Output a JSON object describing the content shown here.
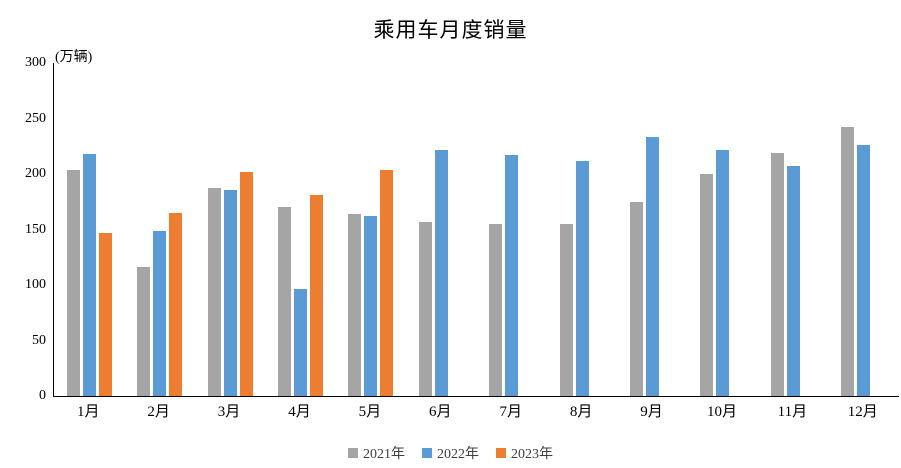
{
  "chart_data": {
    "type": "bar",
    "title": "乘用车月度销量",
    "unit_label": "(万辆)",
    "categories": [
      "1月",
      "2月",
      "3月",
      "4月",
      "5月",
      "6月",
      "7月",
      "8月",
      "9月",
      "10月",
      "11月",
      "12月"
    ],
    "series": [
      {
        "name": "2021年",
        "color": "#A5A5A5",
        "values": [
          204,
          116,
          187,
          170,
          164,
          157,
          155,
          155,
          175,
          200,
          219,
          242
        ]
      },
      {
        "name": "2022年",
        "color": "#5B9BD5",
        "values": [
          218,
          149,
          186,
          96,
          162,
          222,
          217,
          212,
          233,
          222,
          207,
          226
        ]
      },
      {
        "name": "2023年",
        "color": "#ED7D31",
        "values": [
          147,
          165,
          202,
          181,
          204,
          null,
          null,
          null,
          null,
          null,
          null,
          null
        ]
      }
    ],
    "ylim": [
      0,
      300
    ],
    "yticks": [
      0,
      50,
      100,
      150,
      200,
      250,
      300
    ],
    "grid": false,
    "legend_position": "bottom"
  }
}
